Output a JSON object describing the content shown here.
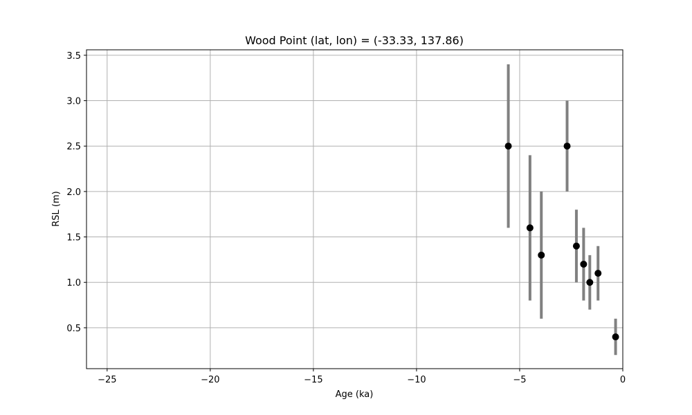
{
  "chart_data": {
    "type": "scatter",
    "title": "Wood Point (lat, lon) = (-33.33, 137.86)",
    "xlabel": "Age (ka)",
    "ylabel": "RSL (m)",
    "xlim": [
      -26,
      0
    ],
    "ylim": [
      0.05,
      3.56
    ],
    "xticks": [
      -25,
      -20,
      -15,
      -10,
      -5,
      0
    ],
    "xtick_labels": [
      "−25",
      "−20",
      "−15",
      "−10",
      "−5",
      "0"
    ],
    "yticks": [
      0.5,
      1.0,
      1.5,
      2.0,
      2.5,
      3.0,
      3.5
    ],
    "ytick_labels": [
      "0.5",
      "1.0",
      "1.5",
      "2.0",
      "2.5",
      "3.0",
      "3.5"
    ],
    "grid": true,
    "series": [
      {
        "marker_color": "#000000",
        "errorbar_color": "#808080",
        "points": [
          {
            "x": -5.55,
            "y": 2.5,
            "ylow": 1.6,
            "yhigh": 3.4
          },
          {
            "x": -4.5,
            "y": 1.6,
            "ylow": 0.8,
            "yhigh": 2.4
          },
          {
            "x": -3.95,
            "y": 1.3,
            "ylow": 0.6,
            "yhigh": 2.0
          },
          {
            "x": -2.7,
            "y": 2.5,
            "ylow": 2.0,
            "yhigh": 3.0
          },
          {
            "x": -2.25,
            "y": 1.4,
            "ylow": 1.0,
            "yhigh": 1.8
          },
          {
            "x": -1.9,
            "y": 1.2,
            "ylow": 0.8,
            "yhigh": 1.6
          },
          {
            "x": -1.6,
            "y": 1.0,
            "ylow": 0.7,
            "yhigh": 1.3
          },
          {
            "x": -1.2,
            "y": 1.1,
            "ylow": 0.8,
            "yhigh": 1.4
          },
          {
            "x": -0.35,
            "y": 0.4,
            "ylow": 0.2,
            "yhigh": 0.6
          }
        ]
      }
    ]
  }
}
